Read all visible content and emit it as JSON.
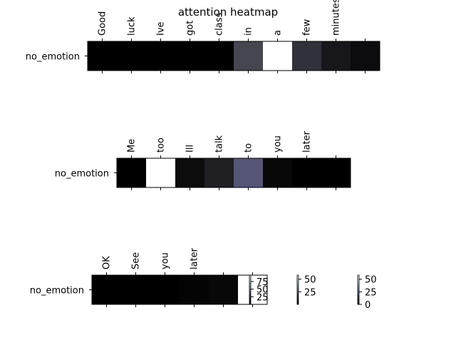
{
  "chart_data": {
    "type": "heatmap",
    "title": "attention heatmap",
    "colormap": "bone",
    "panels": [
      {
        "row_label": "no_emotion",
        "tokens": [
          "Good",
          "luck",
          "Ive",
          "got",
          "class",
          "in",
          "a",
          "few",
          "minutes",
          ""
        ],
        "values": [
          0,
          0,
          0,
          0,
          0,
          30,
          96,
          21,
          10,
          5
        ],
        "vmax": 96
      },
      {
        "row_label": "no_emotion",
        "tokens": [
          "Me",
          "too",
          "Ill",
          "talk",
          "to",
          "you",
          "later",
          ""
        ],
        "values": [
          0,
          58,
          3,
          8,
          22,
          2,
          0,
          0
        ],
        "vmax": 58
      },
      {
        "row_label": "no_emotion",
        "tokens": [
          "OK",
          "See",
          "you",
          "later",
          "",
          ""
        ],
        "values": [
          0,
          0,
          0,
          1,
          2,
          58
        ],
        "vmax": 58
      }
    ],
    "colorbars": [
      {
        "ticks": [
          "75",
          "50",
          "25"
        ],
        "tick_values": [
          75,
          50,
          25
        ],
        "vmin": 0,
        "vmax": 96
      },
      {
        "ticks": [
          "50",
          "25"
        ],
        "tick_values": [
          50,
          25
        ],
        "vmin": 0,
        "vmax": 58
      },
      {
        "ticks": [
          "50",
          "25",
          "0"
        ],
        "tick_values": [
          50,
          25,
          0
        ],
        "vmin": 0,
        "vmax": 58
      }
    ]
  }
}
